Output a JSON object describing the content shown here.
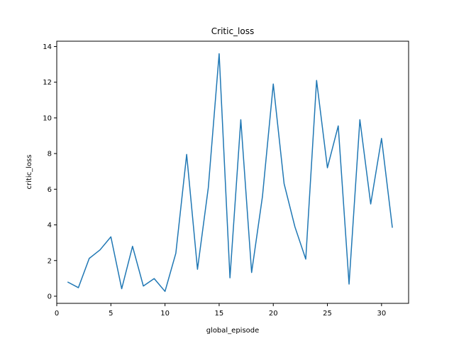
{
  "chart_data": {
    "type": "line",
    "title": "Critic_loss",
    "xlabel": "global_episode",
    "ylabel": "critic_loss",
    "xlim": [
      0,
      32.5
    ],
    "ylim": [
      -0.4,
      14.3
    ],
    "xticks": [
      0,
      5,
      10,
      15,
      20,
      25,
      30
    ],
    "yticks": [
      0,
      2,
      4,
      6,
      8,
      10,
      12,
      14
    ],
    "grid": false,
    "series": [
      {
        "color": "#1f77b4",
        "x": [
          1,
          2,
          3,
          4,
          5,
          6,
          7,
          8,
          9,
          10,
          11,
          12,
          13,
          14,
          15,
          16,
          17,
          18,
          19,
          20,
          21,
          22,
          23,
          24,
          25,
          26,
          27,
          28,
          29,
          30,
          31
        ],
        "y": [
          0.8,
          0.48,
          2.12,
          2.6,
          3.33,
          0.42,
          2.8,
          0.57,
          0.99,
          0.27,
          2.41,
          7.95,
          1.51,
          6.09,
          13.6,
          1.03,
          9.9,
          1.33,
          5.59,
          11.9,
          6.31,
          3.89,
          2.08,
          12.1,
          7.2,
          9.55,
          0.68,
          9.9,
          5.17,
          8.85,
          3.84
        ]
      }
    ]
  }
}
